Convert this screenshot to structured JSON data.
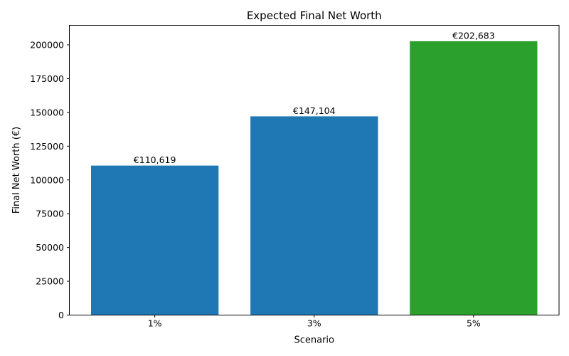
{
  "chart_data": {
    "type": "bar",
    "title": "Expected Final Net Worth",
    "xlabel": "Scenario",
    "ylabel": "Final Net Worth (€)",
    "categories": [
      "1%",
      "3%",
      "5%"
    ],
    "values": [
      110619,
      147104,
      202683
    ],
    "bar_labels": [
      "€110,619",
      "€147,104",
      "€202,683"
    ],
    "bar_colors": [
      "#1f77b4",
      "#1f77b4",
      "#2ca02c"
    ],
    "ylim": [
      0,
      214500
    ],
    "yticks": [
      0,
      25000,
      50000,
      75000,
      100000,
      125000,
      150000,
      175000,
      200000
    ],
    "ytick_labels": [
      "0",
      "25000",
      "50000",
      "75000",
      "100000",
      "125000",
      "150000",
      "175000",
      "200000"
    ],
    "grid": false,
    "legend_position": "none",
    "colors": {
      "bar_default": "#1f77b4",
      "bar_highlight": "#2ca02c",
      "spine": "#000000",
      "text": "#000000"
    }
  }
}
